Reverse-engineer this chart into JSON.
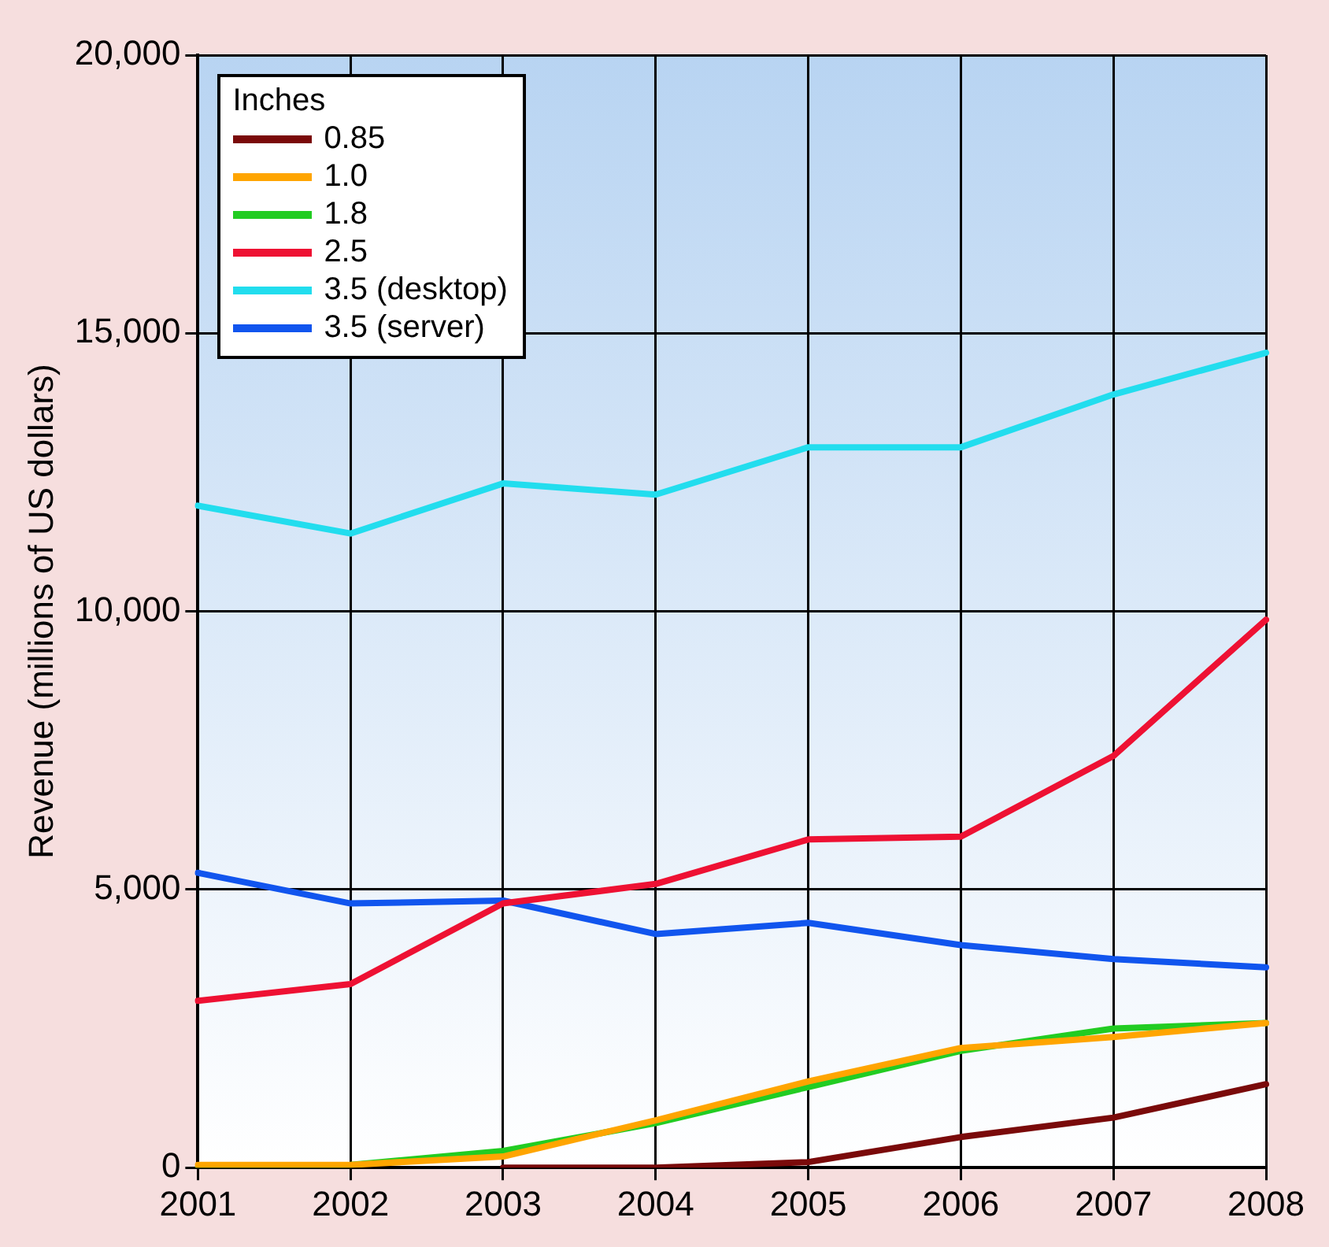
{
  "chart_data": {
    "type": "line",
    "ylabel": "Revenue (millions of US dollars)",
    "legend_title": "Inches",
    "categories": [
      "2001",
      "2002",
      "2003",
      "2004",
      "2005",
      "2006",
      "2007",
      "2008"
    ],
    "series": [
      {
        "name": "0.85",
        "color": "#7a0a0a",
        "values": [
          null,
          null,
          0,
          0,
          100,
          550,
          900,
          1500
        ]
      },
      {
        "name": "1.0",
        "color": "#ffa500",
        "values": [
          50,
          50,
          200,
          850,
          1550,
          2150,
          2350,
          2600
        ]
      },
      {
        "name": "1.8",
        "color": "#22cc22",
        "values": [
          0,
          50,
          300,
          800,
          1450,
          2100,
          2500,
          2600
        ]
      },
      {
        "name": "2.5",
        "color": "#ee1133",
        "values": [
          3000,
          3300,
          4750,
          5100,
          5900,
          5950,
          7400,
          9850
        ]
      },
      {
        "name": "3.5 (desktop)",
        "color": "#22ddee",
        "values": [
          11900,
          11400,
          12300,
          12100,
          12950,
          12950,
          13900,
          14650
        ]
      },
      {
        "name": "3.5 (server)",
        "color": "#1155ee",
        "values": [
          5300,
          4750,
          4800,
          4200,
          4400,
          4000,
          3750,
          3600
        ]
      }
    ],
    "ylim": [
      0,
      20000
    ],
    "yticks": [
      0,
      {
        "value": 5000,
        "label": "5,000"
      },
      {
        "value": 10000,
        "label": "10,000"
      },
      {
        "value": 15000,
        "label": "15,000"
      },
      {
        "value": 20000,
        "label": "20,000"
      }
    ],
    "grid": true,
    "legend": "top left",
    "marker": "none",
    "line_style": "solid"
  }
}
